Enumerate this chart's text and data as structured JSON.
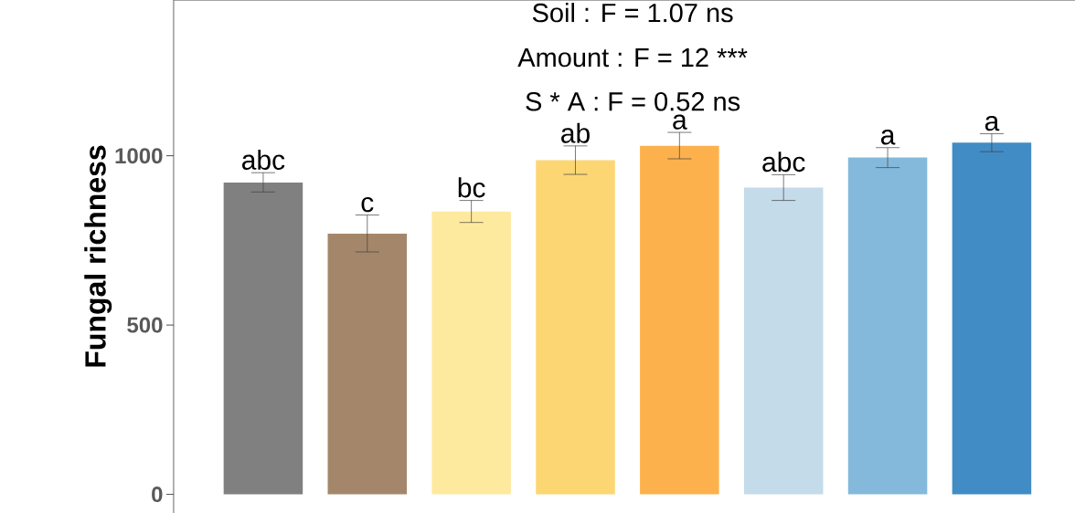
{
  "chart_data": {
    "type": "bar",
    "ylabel": "Fungal richness",
    "categories": [
      null,
      null,
      null,
      null,
      null,
      null,
      null,
      null
    ],
    "values": [
      921,
      770,
      835,
      987,
      1029,
      906,
      995,
      1039
    ],
    "colors": [
      "#808080",
      "#a4876a",
      "#feea9e",
      "#fdd674",
      "#fdb14d",
      "#c4dbea",
      "#85b9dc",
      "#418cc5"
    ],
    "errors": [
      [
        893,
        950
      ],
      [
        716,
        825
      ],
      [
        803,
        868
      ],
      [
        945,
        1029
      ],
      [
        991,
        1069
      ],
      [
        868,
        944
      ],
      [
        965,
        1024
      ],
      [
        1012,
        1065
      ]
    ],
    "ylim": [
      -55,
      1460
    ],
    "yticks": [
      0,
      500,
      1000
    ],
    "grid": false,
    "annotations": [
      "Soil : F = 1.07 ns",
      "Amount : F = 12 ***",
      "S * A : F = 0.52 ns",
      {
        "text": "abc",
        "y": 950
      },
      {
        "text": "c",
        "y": 825
      },
      {
        "text": "bc",
        "y": 868
      },
      {
        "text": "ab",
        "y": 1029
      },
      {
        "text": "a",
        "y": 1069
      },
      {
        "text": "abc",
        "y": 944
      },
      {
        "text": "a",
        "y": 1024
      },
      {
        "text": "a",
        "y": 1065
      }
    ]
  }
}
